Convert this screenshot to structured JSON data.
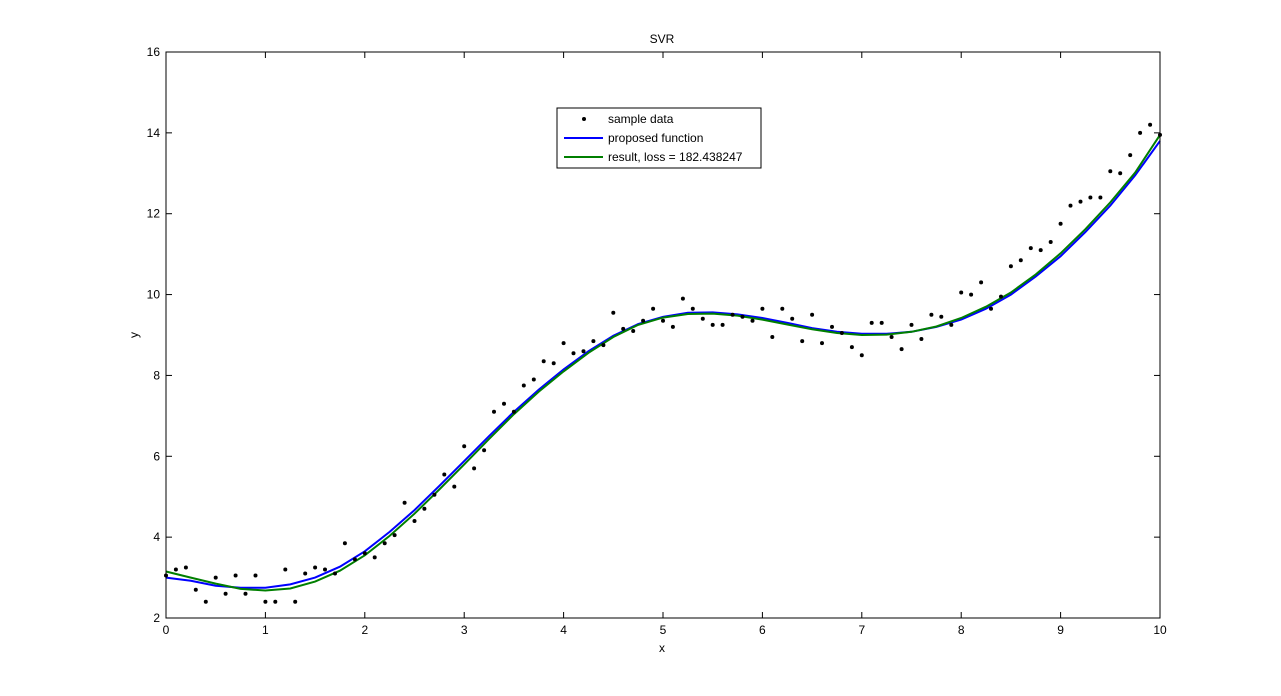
{
  "chart_data": {
    "type": "scatter",
    "title": "SVR",
    "xlabel": "x",
    "ylabel": "y",
    "xlim": [
      0,
      10
    ],
    "ylim": [
      2,
      16
    ],
    "xticks": [
      0,
      1,
      2,
      3,
      4,
      5,
      6,
      7,
      8,
      9,
      10
    ],
    "yticks": [
      2,
      4,
      6,
      8,
      10,
      12,
      14,
      16
    ],
    "grid": false,
    "legend_position": "top-center",
    "series": [
      {
        "name": "sample data",
        "kind": "points",
        "color": "#000000",
        "x": [
          0.0,
          0.1,
          0.2,
          0.3,
          0.4,
          0.5,
          0.6,
          0.7,
          0.8,
          0.9,
          1.0,
          1.1,
          1.2,
          1.3,
          1.4,
          1.5,
          1.6,
          1.7,
          1.8,
          1.9,
          2.0,
          2.1,
          2.2,
          2.3,
          2.4,
          2.5,
          2.6,
          2.7,
          2.8,
          2.9,
          3.0,
          3.1,
          3.2,
          3.3,
          3.4,
          3.5,
          3.6,
          3.7,
          3.8,
          3.9,
          4.0,
          4.1,
          4.2,
          4.3,
          4.4,
          4.5,
          4.6,
          4.7,
          4.8,
          4.9,
          5.0,
          5.1,
          5.2,
          5.3,
          5.4,
          5.5,
          5.6,
          5.7,
          5.8,
          5.9,
          6.0,
          6.1,
          6.2,
          6.3,
          6.4,
          6.5,
          6.6,
          6.7,
          6.8,
          6.9,
          7.0,
          7.1,
          7.2,
          7.3,
          7.4,
          7.5,
          7.6,
          7.7,
          7.8,
          7.9,
          8.0,
          8.1,
          8.2,
          8.3,
          8.4,
          8.5,
          8.6,
          8.7,
          8.8,
          8.9,
          9.0,
          9.1,
          9.2,
          9.3,
          9.4,
          9.5,
          9.6,
          9.7,
          9.8,
          9.9,
          10.0
        ],
        "y": [
          3.05,
          3.2,
          3.25,
          2.7,
          2.4,
          3.0,
          2.6,
          3.05,
          2.6,
          3.05,
          2.4,
          2.4,
          3.2,
          2.4,
          3.1,
          3.25,
          3.2,
          3.1,
          3.85,
          3.45,
          3.6,
          3.5,
          3.85,
          4.05,
          4.85,
          4.4,
          4.7,
          5.05,
          5.55,
          5.25,
          6.25,
          5.7,
          6.15,
          7.1,
          7.3,
          7.1,
          7.75,
          7.9,
          8.35,
          8.3,
          8.8,
          8.55,
          8.6,
          8.85,
          8.75,
          9.55,
          9.15,
          9.1,
          9.35,
          9.65,
          9.35,
          9.2,
          9.9,
          9.65,
          9.4,
          9.25,
          9.25,
          9.5,
          9.45,
          9.35,
          9.65,
          8.95,
          9.65,
          9.4,
          8.85,
          9.5,
          8.8,
          9.2,
          9.05,
          8.7,
          8.5,
          9.3,
          9.3,
          8.95,
          8.65,
          9.25,
          8.9,
          9.5,
          9.45,
          9.25,
          10.05,
          10.0,
          10.3,
          9.65,
          9.95,
          10.7,
          10.85,
          11.15,
          11.1,
          11.3,
          11.75,
          12.2,
          12.3,
          12.4,
          12.4,
          13.05,
          13.0,
          13.45,
          14.0,
          14.2,
          13.95
        ]
      },
      {
        "name": "proposed function",
        "kind": "line",
        "color": "#0000ff",
        "x": [
          0.0,
          0.25,
          0.5,
          0.75,
          1.0,
          1.25,
          1.5,
          1.75,
          2.0,
          2.25,
          2.5,
          2.75,
          3.0,
          3.25,
          3.5,
          3.75,
          4.0,
          4.25,
          4.5,
          4.75,
          5.0,
          5.25,
          5.5,
          5.75,
          6.0,
          6.25,
          6.5,
          6.75,
          7.0,
          7.25,
          7.5,
          7.75,
          8.0,
          8.25,
          8.5,
          8.75,
          9.0,
          9.25,
          9.5,
          9.75,
          10.0
        ],
        "y": [
          3.0,
          2.92,
          2.8,
          2.75,
          2.75,
          2.83,
          3.0,
          3.27,
          3.65,
          4.13,
          4.67,
          5.27,
          5.88,
          6.5,
          7.1,
          7.65,
          8.15,
          8.6,
          8.98,
          9.27,
          9.45,
          9.55,
          9.56,
          9.51,
          9.42,
          9.3,
          9.17,
          9.08,
          9.03,
          9.03,
          9.08,
          9.2,
          9.38,
          9.65,
          10.0,
          10.45,
          10.95,
          11.55,
          12.2,
          12.95,
          13.8
        ]
      },
      {
        "name": "result, loss = 182.438247",
        "kind": "line",
        "color": "#007f00",
        "x": [
          0.0,
          0.25,
          0.5,
          0.75,
          1.0,
          1.25,
          1.5,
          1.75,
          2.0,
          2.25,
          2.5,
          2.75,
          3.0,
          3.25,
          3.5,
          3.75,
          4.0,
          4.25,
          4.5,
          4.75,
          5.0,
          5.25,
          5.5,
          5.75,
          6.0,
          6.25,
          6.5,
          6.75,
          7.0,
          7.25,
          7.5,
          7.75,
          8.0,
          8.25,
          8.5,
          8.75,
          9.0,
          9.25,
          9.5,
          9.75,
          10.0
        ],
        "y": [
          3.15,
          3.0,
          2.85,
          2.72,
          2.68,
          2.73,
          2.9,
          3.17,
          3.55,
          4.03,
          4.58,
          5.18,
          5.8,
          6.43,
          7.04,
          7.6,
          8.1,
          8.56,
          8.95,
          9.25,
          9.43,
          9.52,
          9.53,
          9.48,
          9.38,
          9.26,
          9.14,
          9.05,
          9.0,
          9.01,
          9.08,
          9.21,
          9.42,
          9.7,
          10.05,
          10.5,
          11.02,
          11.62,
          12.28,
          13.02,
          13.95
        ]
      }
    ]
  }
}
